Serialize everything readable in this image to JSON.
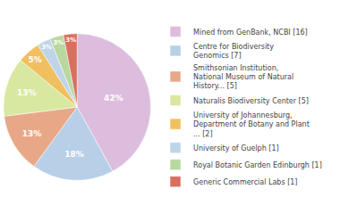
{
  "chart_data": {
    "type": "pie",
    "labels": [
      "Mined from GenBank, NCBI [16]",
      "Centre for Biodiversity\nGenomics [7]",
      "Smithsonian Institution,\nNational Museum of Natural\nHistory... [5]",
      "Naturalis Biodiversity Center [5]",
      "University of Johannesburg,\nDepartment of Botany and Plant\n... [2]",
      "University of Guelph [1]",
      "Royal Botanic Garden Edinburgh [1]",
      "Generic Commercial Labs [1]"
    ],
    "values": [
      42,
      18,
      13,
      13,
      5,
      3,
      3,
      3
    ],
    "value_labels": [
      "42%",
      "18%",
      "13%",
      "13%",
      "5%",
      "3%",
      "3%",
      "3%"
    ],
    "colors": [
      "#ddbddd",
      "#b8cfe8",
      "#e8a888",
      "#d8e8a0",
      "#f0c060",
      "#c0d4e8",
      "#b8d8a0",
      "#d87060"
    ],
    "data_labels": true,
    "legend": "right"
  }
}
